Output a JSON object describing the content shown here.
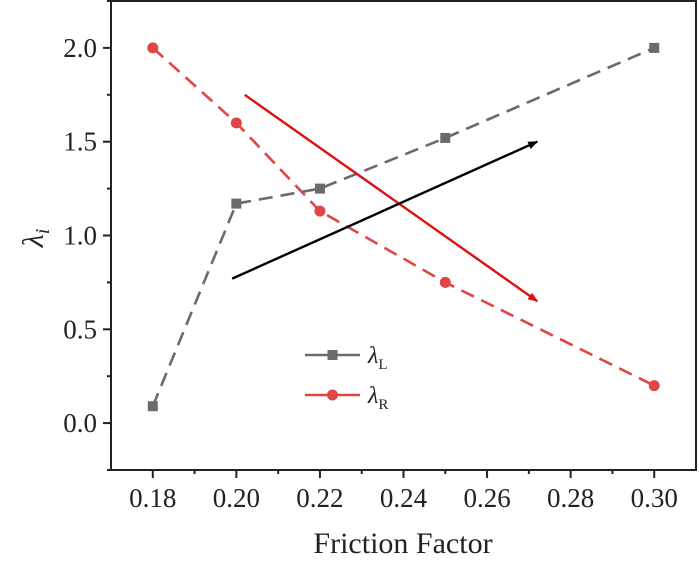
{
  "chart_data": {
    "type": "line",
    "xlabel": "Friction Factor",
    "ylabel_main": "λ",
    "ylabel_sub": "i",
    "xlim": [
      0.17,
      0.31
    ],
    "ylim": [
      -0.25,
      2.25
    ],
    "x_ticks": [
      0.18,
      0.2,
      0.22,
      0.24,
      0.26,
      0.28,
      0.3
    ],
    "x_tick_labels": [
      "0.18",
      "0.20",
      "0.22",
      "0.24",
      "0.26",
      "0.28",
      "0.30"
    ],
    "y_ticks": [
      0.0,
      0.5,
      1.0,
      1.5,
      2.0
    ],
    "y_tick_labels": [
      "0.0",
      "0.5",
      "1.0",
      "1.5",
      "2.0"
    ],
    "series": [
      {
        "name_main": "λ",
        "name_sub": "L",
        "color": "#6b6b6b",
        "marker": "square",
        "x": [
          0.18,
          0.2,
          0.22,
          0.25,
          0.3
        ],
        "y": [
          0.09,
          1.17,
          1.25,
          1.52,
          2.0
        ]
      },
      {
        "name_main": "λ",
        "name_sub": "R",
        "color": "#e04646",
        "marker": "circle",
        "x": [
          0.18,
          0.2,
          0.22,
          0.25,
          0.3
        ],
        "y": [
          2.0,
          1.6,
          1.13,
          0.75,
          0.2
        ]
      }
    ],
    "annotations": [
      {
        "kind": "arrow",
        "color": "#dd1111",
        "from": [
          0.202,
          1.75
        ],
        "to": [
          0.272,
          0.65
        ]
      },
      {
        "kind": "arrow",
        "color": "#000000",
        "from": [
          0.199,
          0.77
        ],
        "to": [
          0.272,
          1.5
        ]
      }
    ],
    "legend_position": "lower-center"
  }
}
